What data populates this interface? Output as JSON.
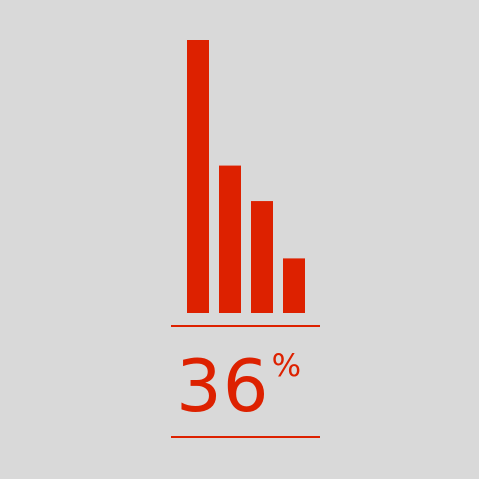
{
  "colors": {
    "background": "#d9d9d9",
    "accent": "#dd2100"
  },
  "kpi": {
    "value": "36",
    "unit": "%"
  },
  "chart_data": {
    "type": "bar",
    "categories": [
      "",
      "",
      "",
      ""
    ],
    "values": [
      100,
      54,
      41,
      20
    ],
    "title": "",
    "xlabel": "",
    "ylabel": "",
    "ylim": [
      0,
      100
    ],
    "grid": false,
    "legend": "none"
  }
}
